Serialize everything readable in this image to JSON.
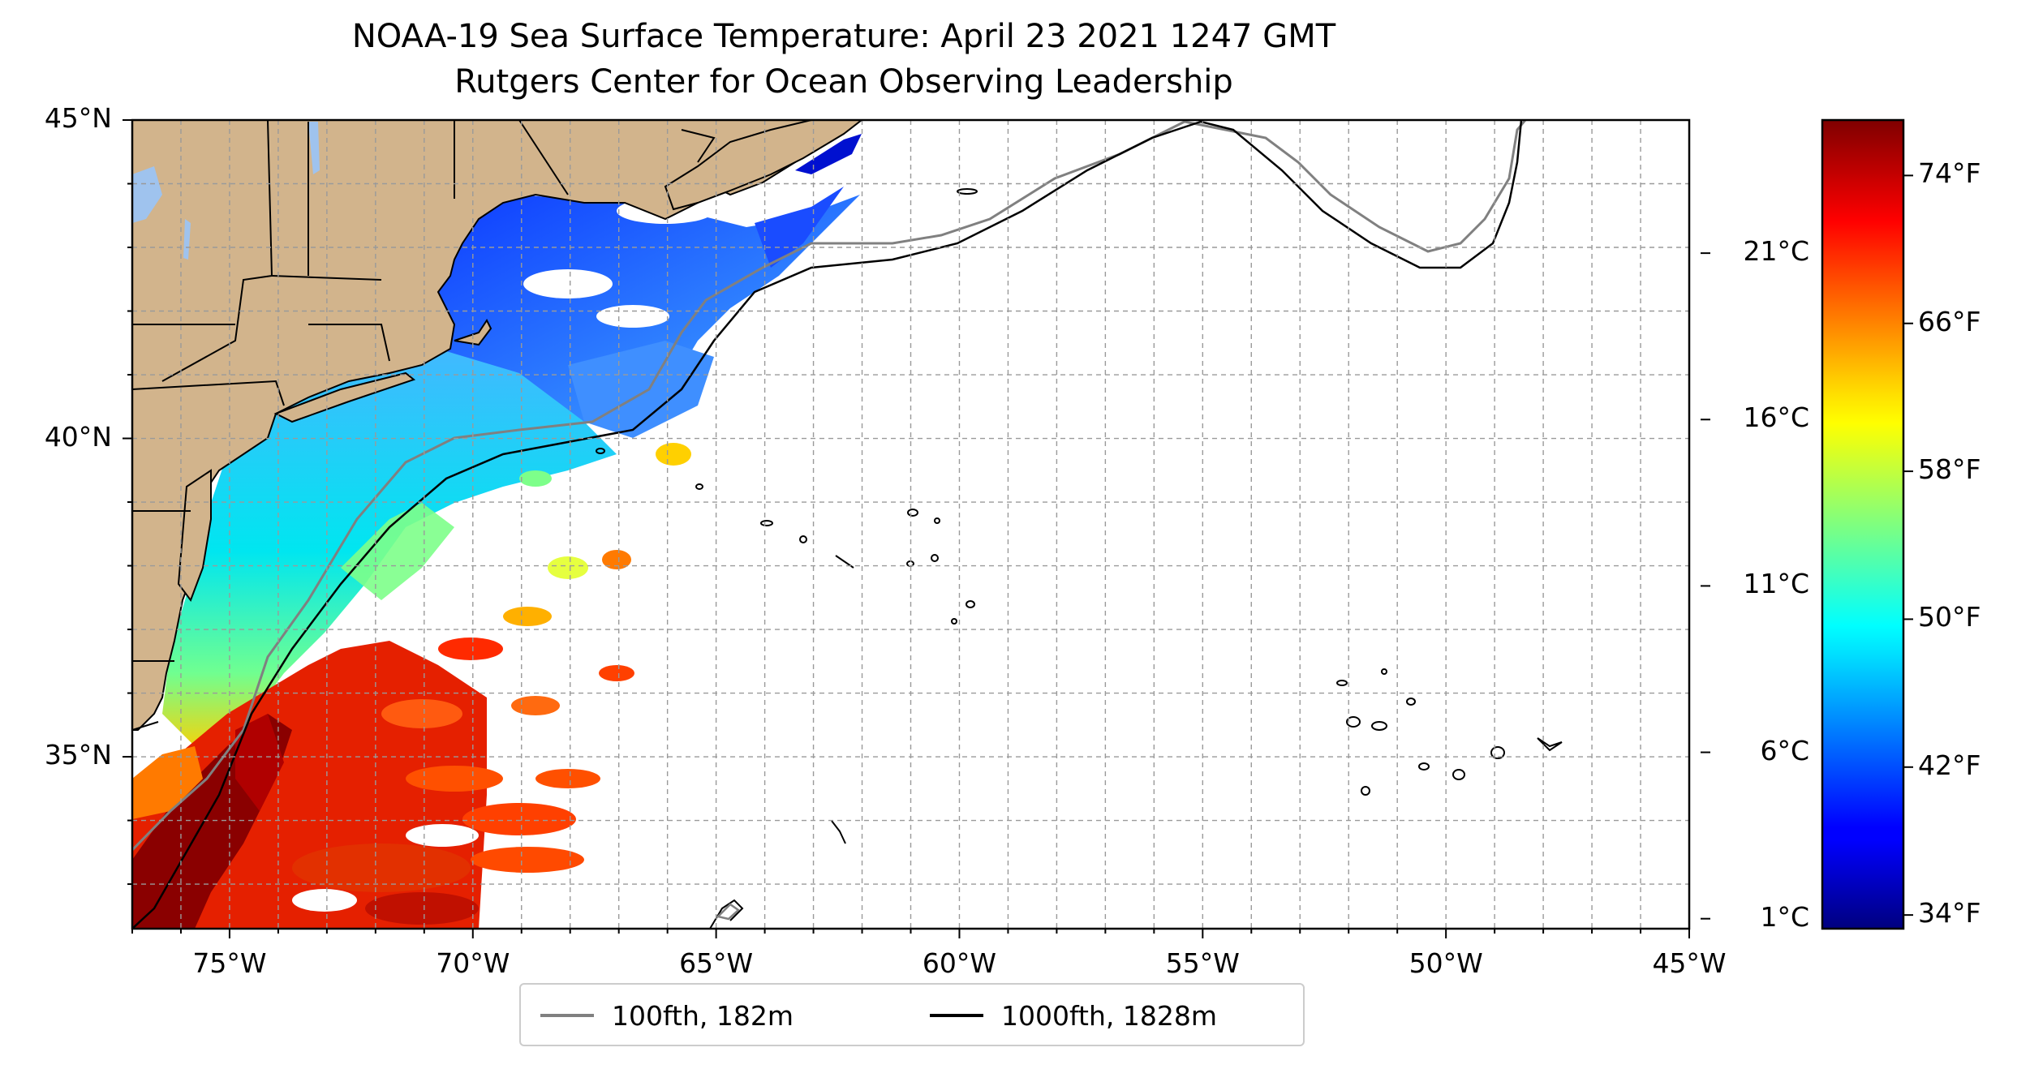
{
  "title": {
    "line1": "NOAA-19 Sea Surface Temperature: April 23 2021 1247 GMT",
    "line2": "Rutgers Center for Ocean Observing Leadership"
  },
  "map": {
    "extent": {
      "lon": [
        -77,
        -45
      ],
      "lat": [
        32.3,
        45
      ]
    },
    "lon_ticks": [
      {
        "value": -75,
        "label": "75°W"
      },
      {
        "value": -70,
        "label": "70°W"
      },
      {
        "value": -65,
        "label": "65°W"
      },
      {
        "value": -60,
        "label": "60°W"
      },
      {
        "value": -55,
        "label": "55°W"
      },
      {
        "value": -50,
        "label": "50°W"
      },
      {
        "value": -45,
        "label": "45°W"
      }
    ],
    "lat_ticks": [
      {
        "value": 45,
        "label": "45°N"
      },
      {
        "value": 40,
        "label": "40°N"
      },
      {
        "value": 35,
        "label": "35°N"
      }
    ],
    "grid": true,
    "land_color": "#d2b48c",
    "lake_color": "#9fc3ee"
  },
  "colorbar": {
    "colormap": "jet",
    "range_c": [
      0.7,
      25
    ],
    "celsius_ticks": [
      {
        "value": 1,
        "label": "1°C"
      },
      {
        "value": 6,
        "label": "6°C"
      },
      {
        "value": 11,
        "label": "11°C"
      },
      {
        "value": 16,
        "label": "16°C"
      },
      {
        "value": 21,
        "label": "21°C"
      }
    ],
    "fahrenheit_ticks": [
      {
        "value": 34,
        "label": "34°F"
      },
      {
        "value": 42,
        "label": "42°F"
      },
      {
        "value": 50,
        "label": "50°F"
      },
      {
        "value": 58,
        "label": "58°F"
      },
      {
        "value": 66,
        "label": "66°F"
      },
      {
        "value": 74,
        "label": "74°F"
      }
    ]
  },
  "legend": {
    "entries": [
      {
        "label": "100fth, 182m",
        "color": "#808080"
      },
      {
        "label": "1000fth, 1828m",
        "color": "#000000"
      }
    ]
  }
}
